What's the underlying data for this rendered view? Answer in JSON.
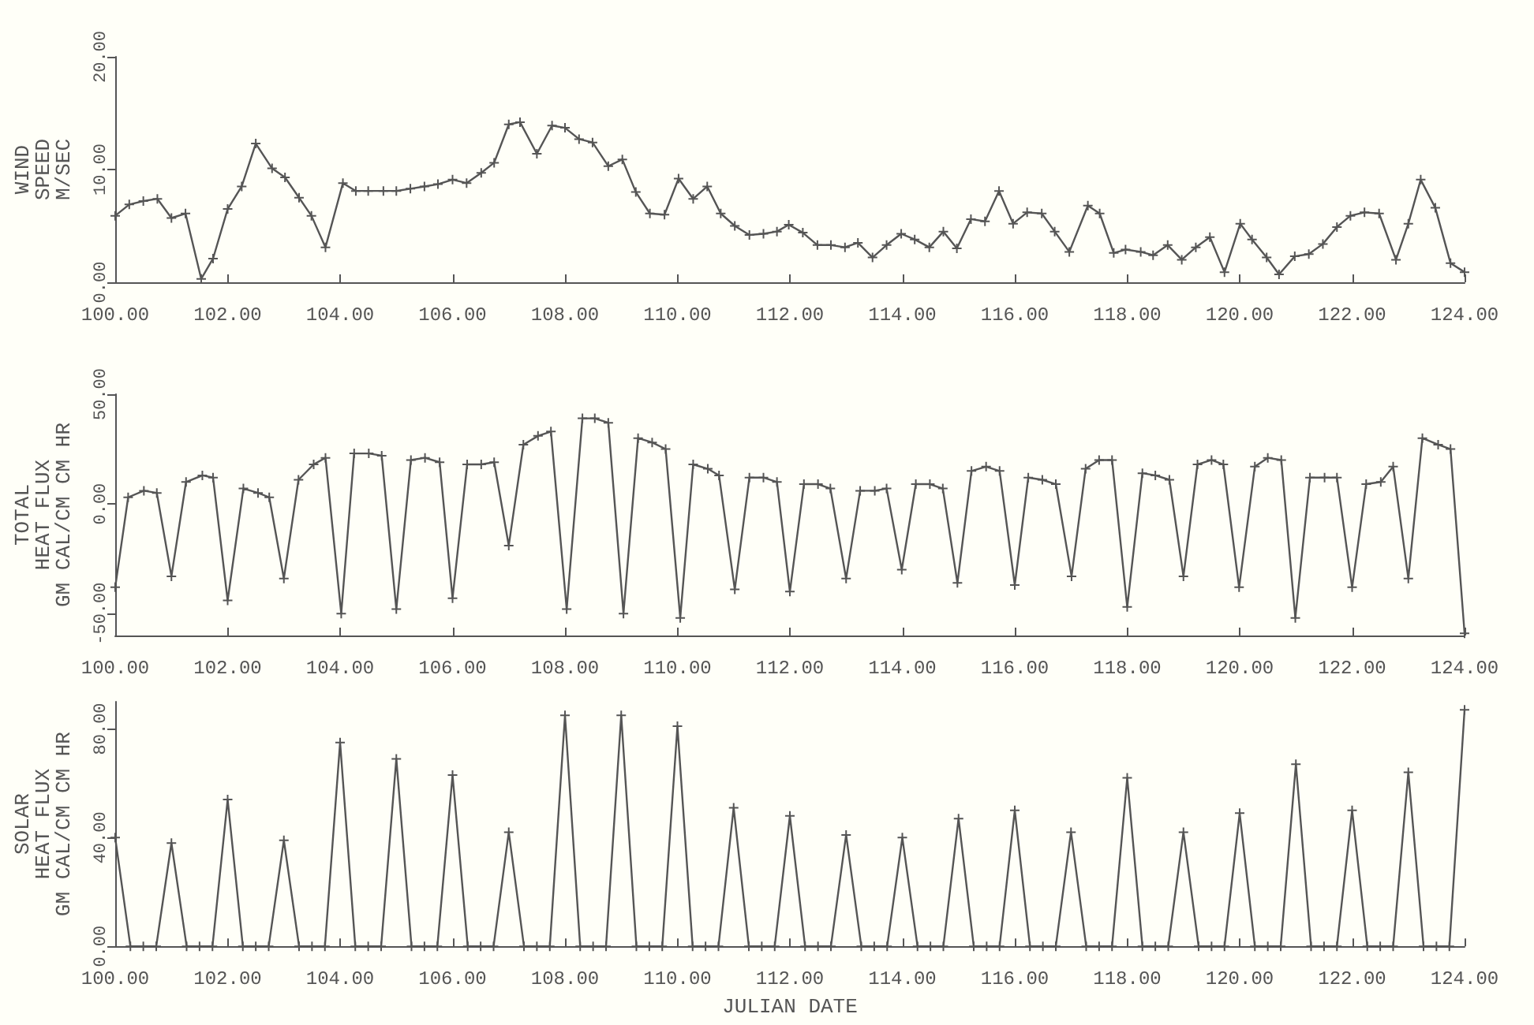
{
  "chart_data": [
    {
      "type": "line",
      "ylabel": "WIND\nSPEED\nM/SEC",
      "marker": "cross",
      "grid": false,
      "xlim": [
        100,
        124
      ],
      "xticks": [
        {
          "value": 100,
          "label": "100.00"
        },
        {
          "value": 102,
          "label": "102.00"
        },
        {
          "value": 104,
          "label": "104.00"
        },
        {
          "value": 106,
          "label": "106.00"
        },
        {
          "value": 108,
          "label": "108.00"
        },
        {
          "value": 110,
          "label": "110.00"
        },
        {
          "value": 112,
          "label": "112.00"
        },
        {
          "value": 114,
          "label": "114.00"
        },
        {
          "value": 116,
          "label": "116.00"
        },
        {
          "value": 118,
          "label": "118.00"
        },
        {
          "value": 120,
          "label": "120.00"
        },
        {
          "value": 122,
          "label": "122.00"
        },
        {
          "value": 124,
          "label": "124.00"
        }
      ],
      "ylim": [
        0,
        20
      ],
      "yticks": [
        {
          "value": 0,
          "label": "0.00"
        },
        {
          "value": 10,
          "label": "10.00"
        },
        {
          "value": 20,
          "label": "20.00"
        }
      ],
      "series": [
        {
          "color": "#555555",
          "x": [
            100,
            100.25,
            100.5,
            100.75,
            101,
            101.25,
            101.53,
            101.74,
            102,
            102.25,
            102.5,
            102.79,
            103.02,
            103.27,
            103.49,
            103.74,
            104.05,
            104.28,
            104.5,
            104.77,
            105,
            105.25,
            105.5,
            105.74,
            106,
            106.25,
            106.51,
            106.74,
            107,
            107.2,
            107.5,
            107.77,
            108,
            108.25,
            108.49,
            108.77,
            109.02,
            109.26,
            109.51,
            109.77,
            110.02,
            110.28,
            110.53,
            110.77,
            111.02,
            111.28,
            111.53,
            111.77,
            111.98,
            112.23,
            112.49,
            112.73,
            112.98,
            113.21,
            113.47,
            113.72,
            113.98,
            114.22,
            114.48,
            114.73,
            114.97,
            115.22,
            115.47,
            115.72,
            115.97,
            116.22,
            116.48,
            116.71,
            116.97,
            117.3,
            117.51,
            117.76,
            117.97,
            118.24,
            118.46,
            118.72,
            118.97,
            119.22,
            119.47,
            119.73,
            120.01,
            120.22,
            120.48,
            120.7,
            120.98,
            121.23,
            121.48,
            121.73,
            121.97,
            122.22,
            122.48,
            122.78,
            123,
            123.22,
            123.48,
            123.75,
            124
          ],
          "values": [
            5.9,
            6.9,
            7.2,
            7.4,
            5.7,
            6.1,
            0.3,
            2.1,
            6.5,
            8.5,
            12.3,
            10.1,
            9.3,
            7.5,
            5.9,
            3.1,
            8.8,
            8.1,
            8.1,
            8.1,
            8.1,
            8.3,
            8.5,
            8.7,
            9.1,
            8.8,
            9.7,
            10.6,
            14.0,
            14.2,
            11.4,
            13.9,
            13.7,
            12.7,
            12.4,
            10.3,
            10.9,
            8.0,
            6.1,
            6.0,
            9.2,
            7.4,
            8.5,
            6.1,
            5.0,
            4.2,
            4.3,
            4.5,
            5.1,
            4.4,
            3.3,
            3.3,
            3.1,
            3.5,
            2.2,
            3.3,
            4.3,
            3.8,
            3.1,
            4.5,
            3.0,
            5.6,
            5.4,
            8.1,
            5.2,
            6.2,
            6.1,
            4.5,
            2.7,
            6.8,
            6.1,
            2.6,
            2.9,
            2.7,
            2.4,
            3.3,
            2.0,
            3.1,
            4.0,
            0.9,
            5.2,
            3.8,
            2.2,
            0.7,
            2.3,
            2.5,
            3.4,
            4.9,
            5.9,
            6.2,
            6.1,
            2.0,
            5.2,
            9.1,
            6.6,
            1.7,
            0.9
          ]
        }
      ]
    },
    {
      "type": "line",
      "ylabel": "TOTAL\nHEAT FLUX\nGM CAL/CM CM HR",
      "marker": "cross",
      "grid": false,
      "xlim": [
        100,
        124
      ],
      "xticks": [
        {
          "value": 100,
          "label": "100.00"
        },
        {
          "value": 102,
          "label": "102.00"
        },
        {
          "value": 104,
          "label": "104.00"
        },
        {
          "value": 106,
          "label": "106.00"
        },
        {
          "value": 108,
          "label": "108.00"
        },
        {
          "value": 110,
          "label": "110.00"
        },
        {
          "value": 112,
          "label": "112.00"
        },
        {
          "value": 114,
          "label": "114.00"
        },
        {
          "value": 116,
          "label": "116.00"
        },
        {
          "value": 118,
          "label": "118.00"
        },
        {
          "value": 120,
          "label": "120.00"
        },
        {
          "value": 122,
          "label": "122.00"
        },
        {
          "value": 124,
          "label": "124.00"
        }
      ],
      "ylim": [
        -60,
        50
      ],
      "yticks": [
        {
          "value": -50,
          "label": "-50.00"
        },
        {
          "value": 0,
          "label": "0.00"
        },
        {
          "value": 50,
          "label": "50.00"
        }
      ],
      "series": [
        {
          "color": "#555555",
          "x": [
            100,
            100.23,
            100.51,
            100.74,
            101,
            101.26,
            101.55,
            101.74,
            102,
            102.28,
            102.54,
            102.74,
            103,
            103.26,
            103.53,
            103.74,
            104.02,
            104.25,
            104.51,
            104.74,
            105,
            105.26,
            105.51,
            105.77,
            106,
            106.26,
            106.51,
            106.74,
            107,
            107.26,
            107.52,
            107.75,
            108.03,
            108.31,
            108.53,
            108.77,
            109.04,
            109.3,
            109.55,
            109.79,
            110.05,
            110.28,
            110.54,
            110.74,
            111.02,
            111.28,
            111.53,
            111.77,
            112,
            112.25,
            112.5,
            112.72,
            113,
            113.25,
            113.51,
            113.72,
            113.99,
            114.24,
            114.49,
            114.72,
            114.98,
            115.23,
            115.49,
            115.73,
            116,
            116.24,
            116.49,
            116.73,
            117.01,
            117.26,
            117.5,
            117.73,
            118,
            118.27,
            118.5,
            118.75,
            119,
            119.25,
            119.5,
            119.71,
            119.99,
            120.27,
            120.5,
            120.74,
            120.99,
            121.25,
            121.51,
            121.73,
            122,
            122.25,
            122.51,
            122.73,
            123,
            123.25,
            123.53,
            123.75,
            124
          ],
          "values": [
            -38,
            3,
            6,
            5,
            -33,
            10,
            13,
            12,
            -44,
            7,
            5,
            3,
            -34,
            11,
            18,
            21,
            -50,
            23,
            23,
            22,
            -48,
            20,
            21,
            19,
            -43,
            18,
            18,
            19,
            -19,
            27,
            31,
            33,
            -48,
            39,
            39,
            37,
            -50,
            30,
            28,
            25,
            -52,
            18,
            16,
            13,
            -39,
            12,
            12,
            10,
            -40,
            9,
            9,
            7,
            -34,
            6,
            6,
            7,
            -30,
            9,
            9,
            7,
            -36,
            15,
            17,
            15,
            -37,
            12,
            11,
            9,
            -33,
            16,
            20,
            20,
            -47,
            14,
            13,
            11,
            -33,
            18,
            20,
            18,
            -38,
            17,
            21,
            20,
            -52,
            12,
            12,
            12,
            -38,
            9,
            10,
            17,
            -34,
            30,
            27,
            25,
            -59
          ]
        }
      ]
    },
    {
      "type": "line",
      "ylabel": "SOLAR\nHEAT FLUX\nGM CAL/CM CM HR",
      "xlabel": "JULIAN DATE",
      "marker": "cross",
      "grid": false,
      "xlim": [
        100,
        124
      ],
      "xticks": [
        {
          "value": 100,
          "label": "100.00"
        },
        {
          "value": 102,
          "label": "102.00"
        },
        {
          "value": 104,
          "label": "104.00"
        },
        {
          "value": 106,
          "label": "106.00"
        },
        {
          "value": 108,
          "label": "108.00"
        },
        {
          "value": 110,
          "label": "110.00"
        },
        {
          "value": 112,
          "label": "112.00"
        },
        {
          "value": 114,
          "label": "114.00"
        },
        {
          "value": 116,
          "label": "116.00"
        },
        {
          "value": 118,
          "label": "118.00"
        },
        {
          "value": 120,
          "label": "120.00"
        },
        {
          "value": 122,
          "label": "122.00"
        },
        {
          "value": 124,
          "label": "124.00"
        }
      ],
      "ylim": [
        0,
        90
      ],
      "yticks": [
        {
          "value": 0,
          "label": "0.00"
        },
        {
          "value": 40,
          "label": "40.00"
        },
        {
          "value": 80,
          "label": "80.00"
        }
      ],
      "series": [
        {
          "color": "#555555",
          "x": [
            100,
            100.27,
            100.5,
            100.73,
            101,
            101.27,
            101.5,
            101.73,
            102,
            102.27,
            102.5,
            102.73,
            103,
            103.27,
            103.5,
            103.73,
            104,
            104.27,
            104.5,
            104.73,
            105,
            105.27,
            105.5,
            105.73,
            106,
            106.27,
            106.5,
            106.73,
            107,
            107.27,
            107.5,
            107.73,
            108,
            108.27,
            108.5,
            108.73,
            109,
            109.27,
            109.5,
            109.73,
            110,
            110.27,
            110.5,
            110.73,
            111,
            111.27,
            111.5,
            111.73,
            112,
            112.27,
            112.5,
            112.73,
            113,
            113.27,
            113.5,
            113.73,
            114,
            114.27,
            114.5,
            114.73,
            115,
            115.27,
            115.5,
            115.73,
            116,
            116.27,
            116.5,
            116.73,
            117,
            117.27,
            117.5,
            117.73,
            118,
            118.27,
            118.5,
            118.73,
            119,
            119.27,
            119.5,
            119.73,
            120,
            120.27,
            120.5,
            120.73,
            121,
            121.27,
            121.5,
            121.73,
            122,
            122.27,
            122.5,
            122.73,
            123,
            123.27,
            123.5,
            123.73,
            124
          ],
          "values": [
            40,
            0,
            0,
            0,
            38,
            0,
            0,
            0,
            54,
            0,
            0,
            0,
            39,
            0,
            0,
            0,
            75,
            0,
            0,
            0,
            69,
            0,
            0,
            0,
            63,
            0,
            0,
            0,
            42,
            0,
            0,
            0,
            85,
            0,
            0,
            0,
            85,
            0,
            0,
            0,
            81,
            0,
            0,
            0,
            51,
            0,
            0,
            0,
            48,
            0,
            0,
            0,
            41,
            0,
            0,
            0,
            40,
            0,
            0,
            0,
            47,
            0,
            0,
            0,
            50,
            0,
            0,
            0,
            42,
            0,
            0,
            0,
            62,
            0,
            0,
            0,
            42,
            0,
            0,
            0,
            49,
            0,
            0,
            0,
            67,
            0,
            0,
            0,
            50,
            0,
            0,
            0,
            64,
            0,
            0,
            0,
            87
          ]
        }
      ]
    }
  ]
}
